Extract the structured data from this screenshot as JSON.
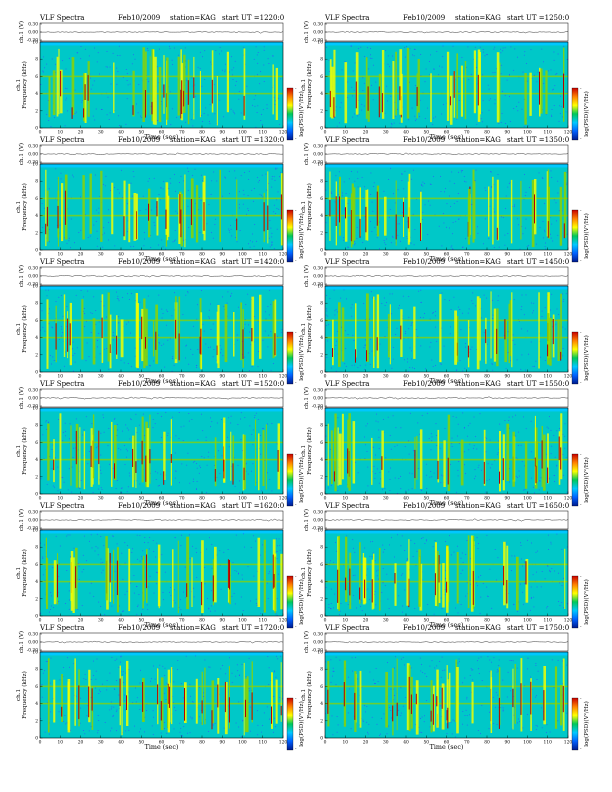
{
  "page": {
    "title": "VLF Spectra"
  },
  "panels": [
    {
      "title": "VLF Spectra",
      "date": "Feb10/2009",
      "station": "station=KAG",
      "start": "start  UT  =1220:0"
    },
    {
      "title": "VLF Spectra",
      "date": "Feb10/2009",
      "station": "station=KAG",
      "start": "start  UT  =1250:0"
    },
    {
      "title": "VLF Spectra",
      "date": "Feb10/2009",
      "station": "station=KAG",
      "start": "start  UT  =1320:0"
    },
    {
      "title": "VLF Spectra",
      "date": "Feb10/2009",
      "station": "station=KAG",
      "start": "start  UT  =1350:0"
    },
    {
      "title": "VLF Spectra",
      "date": "Feb10/2009",
      "station": "station=KAG",
      "start": "start  UT  =1420:0"
    },
    {
      "title": "VLF Spectra",
      "date": "Feb10/2009",
      "station": "station=KAG",
      "start": "start  UT  =1450:0"
    },
    {
      "title": "VLF Spectra",
      "date": "Feb10/2009",
      "station": "station=KAG",
      "start": "start  UT  =1520:0"
    },
    {
      "title": "VLF Spectra",
      "date": "Feb10/2009",
      "station": "station=KAG",
      "start": "start  UT  =1550:0"
    },
    {
      "title": "VLF Spectra",
      "date": "Feb10/2009",
      "station": "station=KAG",
      "start": "start  UT  =1620:0"
    },
    {
      "title": "VLF Spectra",
      "date": "Feb10/2009",
      "station": "station=KAG",
      "start": "start  UT  =1650:0"
    },
    {
      "title": "VLF Spectra",
      "date": "Feb10/2009",
      "station": "station=KAG",
      "start": "start  UT  =1720:0"
    },
    {
      "title": "VLF Spectra",
      "date": "Feb10/2009",
      "station": "station=KAG",
      "start": "start  UT  =1750:0"
    }
  ],
  "chart_data": {
    "type": "heatmap",
    "layout": "6 rows x 2 columns of spectrograms",
    "xlabel": "Time (sec)",
    "ylabel_top": "ch.1 (V)",
    "ylabel_main_line1": "ch.1",
    "ylabel_main_line2": "Frequency (kHz)",
    "colorbar_label": "log(PSD)(V²/Hz)",
    "x_range": [
      0,
      120
    ],
    "x_ticks": [
      "0",
      "10",
      "20",
      "30",
      "40",
      "50",
      "60",
      "70",
      "80",
      "90",
      "100",
      "110",
      "120"
    ],
    "y_range_khz": [
      0,
      10
    ],
    "y_ticks": [
      "0",
      "2",
      "4",
      "6",
      "8",
      "10"
    ],
    "top_y_ticks": [
      "-0.30",
      "0.00",
      "0.30"
    ],
    "colormap_stops": [
      "#001a8c",
      "#0060ff",
      "#00c8ff",
      "#00c85a",
      "#ffff00",
      "#ff8000",
      "#c80000"
    ],
    "colorbar_ticks": [
      "-",
      "-"
    ],
    "colors": {
      "background": "#00c8c8",
      "blank_band": "#00c8ff",
      "dot_blue": "#3050ff",
      "line_green": "#8cd200",
      "burst_yellow": "#f0ff00",
      "burst_red": "#b40000"
    },
    "top_trace_level_v": 0.0,
    "horizontal_lines_khz": [
      4.0,
      6.0
    ],
    "spectrogram_top_khz": 9.6
  }
}
